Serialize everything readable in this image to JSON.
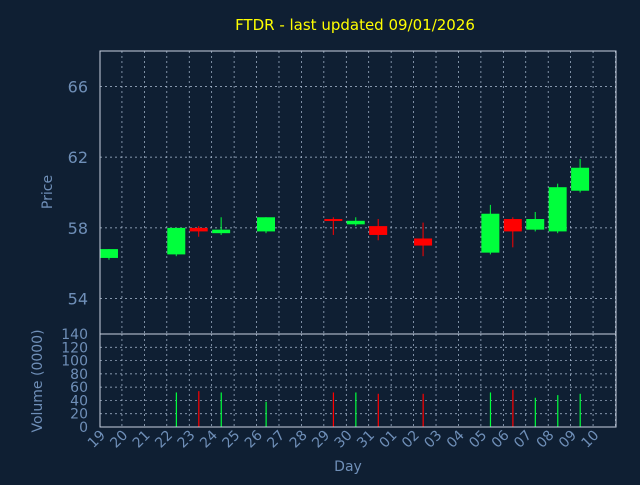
{
  "title": "FTDR - last updated 09/01/2026",
  "colors": {
    "background": "#0f1f33",
    "title": "#ffff00",
    "axis_text": "#6f8fb8",
    "grid": "#aebfd6",
    "frame": "#c8d2e0",
    "up": "#00ff3c",
    "down": "#ff0000"
  },
  "chart_data": [
    {
      "type": "candlestick",
      "ylabel": "Price",
      "ylim": [
        52,
        68
      ],
      "yticks": [
        54,
        58,
        62,
        66
      ],
      "grid": true,
      "categories": [
        "19",
        "20",
        "21",
        "22",
        "23",
        "24",
        "25",
        "26",
        "27",
        "28",
        "29",
        "30",
        "31",
        "01",
        "02",
        "03",
        "04",
        "05",
        "06",
        "07",
        "08",
        "09",
        "10"
      ],
      "candles": [
        {
          "day": "19",
          "open": 56.3,
          "high": 56.8,
          "low": 56.2,
          "close": 56.8
        },
        {
          "day": "22",
          "open": 56.5,
          "high": 58.0,
          "low": 56.4,
          "close": 58.0
        },
        {
          "day": "23",
          "open": 58.0,
          "high": 58.1,
          "low": 57.5,
          "close": 57.8
        },
        {
          "day": "24",
          "open": 57.7,
          "high": 58.6,
          "low": 57.6,
          "close": 57.9
        },
        {
          "day": "26",
          "open": 57.8,
          "high": 58.6,
          "low": 57.7,
          "close": 58.6
        },
        {
          "day": "29",
          "open": 58.5,
          "high": 58.6,
          "low": 57.6,
          "close": 58.4
        },
        {
          "day": "30",
          "open": 58.2,
          "high": 58.6,
          "low": 58.1,
          "close": 58.4
        },
        {
          "day": "31",
          "open": 58.1,
          "high": 58.5,
          "low": 57.3,
          "close": 57.6
        },
        {
          "day": "02",
          "open": 57.4,
          "high": 58.3,
          "low": 56.4,
          "close": 57.0
        },
        {
          "day": "05",
          "open": 56.6,
          "high": 59.3,
          "low": 56.5,
          "close": 58.8
        },
        {
          "day": "06",
          "open": 58.5,
          "high": 58.6,
          "low": 56.9,
          "close": 57.8
        },
        {
          "day": "07",
          "open": 57.9,
          "high": 58.9,
          "low": 57.8,
          "close": 58.5
        },
        {
          "day": "08",
          "open": 57.8,
          "high": 60.5,
          "low": 57.7,
          "close": 60.3
        },
        {
          "day": "09",
          "open": 60.1,
          "high": 61.9,
          "low": 60.0,
          "close": 61.4
        }
      ]
    },
    {
      "type": "bar",
      "ylabel": "Volume (0000)",
      "xlabel": "Day",
      "ylim": [
        0,
        140
      ],
      "yticks": [
        0,
        20,
        40,
        60,
        80,
        100,
        120,
        140
      ],
      "grid": true,
      "categories": [
        "19",
        "20",
        "21",
        "22",
        "23",
        "24",
        "25",
        "26",
        "27",
        "28",
        "29",
        "30",
        "31",
        "01",
        "02",
        "03",
        "04",
        "05",
        "06",
        "07",
        "08",
        "09",
        "10"
      ],
      "volumes": [
        {
          "day": "22",
          "value": 52,
          "direction": "up"
        },
        {
          "day": "23",
          "value": 54,
          "direction": "down"
        },
        {
          "day": "24",
          "value": 52,
          "direction": "up"
        },
        {
          "day": "26",
          "value": 38,
          "direction": "up"
        },
        {
          "day": "29",
          "value": 52,
          "direction": "down"
        },
        {
          "day": "30",
          "value": 52,
          "direction": "up"
        },
        {
          "day": "31",
          "value": 50,
          "direction": "down"
        },
        {
          "day": "02",
          "value": 50,
          "direction": "down"
        },
        {
          "day": "05",
          "value": 52,
          "direction": "up"
        },
        {
          "day": "06",
          "value": 56,
          "direction": "down"
        },
        {
          "day": "07",
          "value": 44,
          "direction": "up"
        },
        {
          "day": "08",
          "value": 48,
          "direction": "up"
        },
        {
          "day": "09",
          "value": 50,
          "direction": "up"
        }
      ]
    }
  ]
}
